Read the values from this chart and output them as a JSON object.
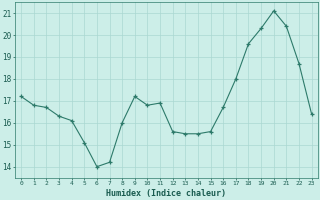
{
  "x": [
    0,
    1,
    2,
    3,
    4,
    5,
    6,
    7,
    8,
    9,
    10,
    11,
    12,
    13,
    14,
    15,
    16,
    17,
    18,
    19,
    20,
    21,
    22,
    23
  ],
  "y": [
    17.2,
    16.8,
    16.7,
    16.3,
    16.1,
    15.1,
    14.0,
    14.2,
    16.0,
    17.2,
    16.8,
    16.9,
    15.6,
    15.5,
    15.5,
    15.6,
    16.7,
    18.0,
    19.6,
    20.3,
    21.1,
    20.4,
    18.7,
    16.4
  ],
  "xlabel": "Humidex (Indice chaleur)",
  "xlim": [
    -0.5,
    23.5
  ],
  "ylim": [
    13.5,
    21.5
  ],
  "yticks": [
    14,
    15,
    16,
    17,
    18,
    19,
    20,
    21
  ],
  "xticks": [
    0,
    1,
    2,
    3,
    4,
    5,
    6,
    7,
    8,
    9,
    10,
    11,
    12,
    13,
    14,
    15,
    16,
    17,
    18,
    19,
    20,
    21,
    22,
    23
  ],
  "line_color": "#2d7a6a",
  "bg_color": "#cceee8",
  "grid_color": "#aad8d2",
  "tick_color": "#1a5c50",
  "label_color": "#1a5c50",
  "spine_color": "#2d7a6a"
}
